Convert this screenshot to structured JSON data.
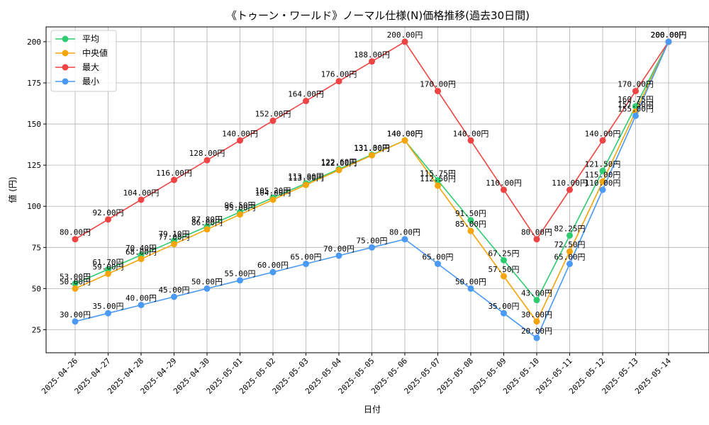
{
  "chart_data": {
    "type": "line",
    "title": "《トゥーン・ワールド》ノーマル仕様(N)価格推移(過去30日間)",
    "xlabel": "日付",
    "ylabel": "値 (円)",
    "ylim": [
      11,
      209
    ],
    "yticks": [
      25,
      50,
      75,
      100,
      125,
      150,
      175,
      200
    ],
    "grid": true,
    "legend_position": "top-left",
    "label_suffix": "円",
    "categories": [
      "2025-04-26",
      "2025-04-27",
      "2025-04-28",
      "2025-04-29",
      "2025-04-30",
      "2025-05-01",
      "2025-05-02",
      "2025-05-03",
      "2025-05-04",
      "2025-05-05",
      "2025-05-06",
      "2025-05-07",
      "2025-05-08",
      "2025-05-09",
      "2025-05-10",
      "2025-05-11",
      "2025-05-12",
      "2025-05-13",
      "2025-05-14"
    ],
    "series": [
      {
        "name": "平均",
        "color": "#2ecc71",
        "values": [
          53.0,
          61.7,
          70.4,
          79.1,
          87.8,
          96.5,
          105.2,
          113.9,
          122.6,
          131.3,
          140.0,
          115.75,
          91.5,
          67.25,
          43.0,
          82.25,
          121.5,
          160.75,
          200.0
        ]
      },
      {
        "name": "中央値",
        "color": "#f5a50a",
        "values": [
          50.0,
          59.0,
          68.0,
          77.0,
          86.0,
          95.0,
          104.0,
          113.0,
          122.0,
          131.0,
          140.0,
          112.5,
          85.0,
          57.5,
          30.0,
          72.5,
          115.0,
          157.5,
          200.0
        ]
      },
      {
        "name": "最大",
        "color": "#ef4444",
        "values": [
          80.0,
          92.0,
          104.0,
          116.0,
          128.0,
          140.0,
          152.0,
          164.0,
          176.0,
          188.0,
          200.0,
          170.0,
          140.0,
          110.0,
          80.0,
          110.0,
          140.0,
          170.0,
          200.0
        ]
      },
      {
        "name": "最小",
        "color": "#4a9af5",
        "values": [
          30.0,
          35.0,
          40.0,
          45.0,
          50.0,
          55.0,
          60.0,
          65.0,
          70.0,
          75.0,
          80.0,
          65.0,
          50.0,
          35.0,
          20.0,
          65.0,
          110.0,
          155.0,
          200.0
        ]
      }
    ]
  }
}
